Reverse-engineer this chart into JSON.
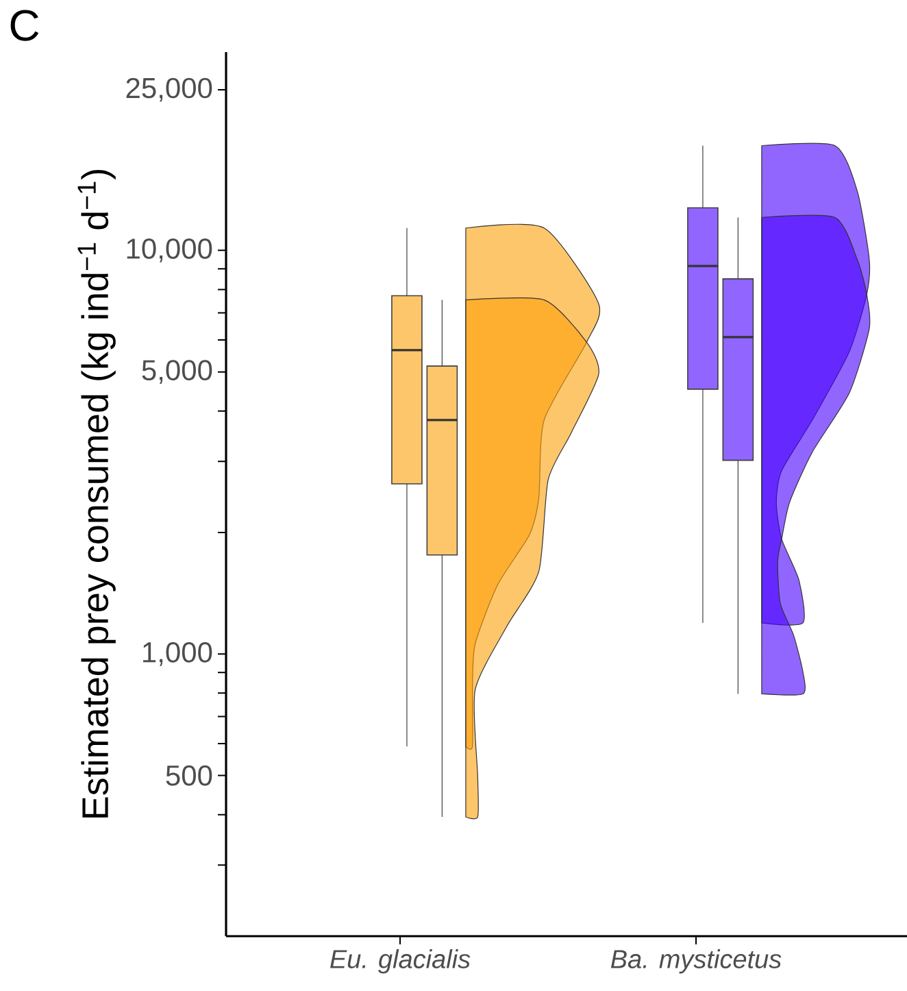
{
  "chart_data": {
    "type": "box",
    "title": "C",
    "ylabel": "Estimated prey consumed (kg ind$^{−1}$ d$^{−1}$)",
    "categories": [
      "Eu. glacialis",
      "Ba. mysticetus"
    ],
    "log": "y",
    "ylim": [
      200,
      31000
    ],
    "yticks": [
      {
        "value": 300,
        "label": null
      },
      {
        "value": 400,
        "label": null
      },
      500,
      {
        "value": 600,
        "label": null
      },
      {
        "value": 700,
        "label": null
      },
      {
        "value": 800,
        "label": null
      },
      {
        "value": 900,
        "label": null
      },
      {
        "value": 1000,
        "label": "1,000"
      },
      {
        "value": 2000,
        "label": null
      },
      {
        "value": 3000,
        "label": null
      },
      {
        "value": 4000,
        "label": null
      },
      {
        "value": 5000,
        "label": "5,000"
      },
      {
        "value": 6000,
        "label": null
      },
      {
        "value": 7000,
        "label": null
      },
      {
        "value": 8000,
        "label": null
      },
      {
        "value": 9000,
        "label": null
      },
      {
        "value": 10000,
        "label": "10,000"
      },
      {
        "value": 25000,
        "label": "25,000"
      }
    ],
    "grid": false,
    "series": [
      {
        "colors": [
          "#fec66b",
          "#9165ff"
        ],
        "boxes": [
          {
            "low": 590,
            "q1": 2640,
            "median": 5660,
            "q3": 7720,
            "high": 11360
          },
          {
            "low": 1194,
            "q1": 4530,
            "median": 9150,
            "q3": 12750,
            "high": 18180
          }
        ]
      },
      {
        "colors": [
          "#fec66b",
          "#9165ff"
        ],
        "boxes": [
          {
            "low": 395,
            "q1": 1760,
            "median": 3800,
            "q3": 5170,
            "high": 7540
          },
          {
            "low": 797,
            "q1": 3020,
            "median": 6100,
            "q3": 8500,
            "high": 12070
          }
        ]
      }
    ]
  }
}
